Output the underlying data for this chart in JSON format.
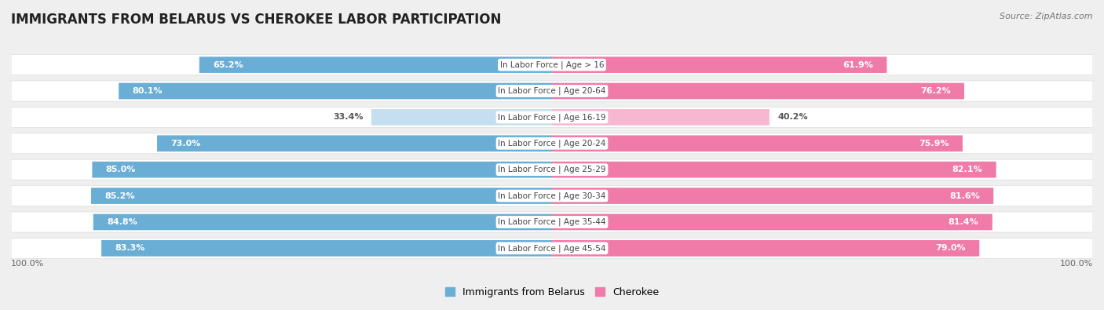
{
  "title": "IMMIGRANTS FROM BELARUS VS CHEROKEE LABOR PARTICIPATION",
  "source": "Source: ZipAtlas.com",
  "categories": [
    "In Labor Force | Age > 16",
    "In Labor Force | Age 20-64",
    "In Labor Force | Age 16-19",
    "In Labor Force | Age 20-24",
    "In Labor Force | Age 25-29",
    "In Labor Force | Age 30-34",
    "In Labor Force | Age 35-44",
    "In Labor Force | Age 45-54"
  ],
  "belarus_values": [
    65.2,
    80.1,
    33.4,
    73.0,
    85.0,
    85.2,
    84.8,
    83.3
  ],
  "cherokee_values": [
    61.9,
    76.2,
    40.2,
    75.9,
    82.1,
    81.6,
    81.4,
    79.0
  ],
  "belarus_color_strong": "#6aaed6",
  "belarus_color_light": "#c5dff0",
  "cherokee_color_strong": "#f07aa8",
  "cherokee_color_light": "#f5b8d0",
  "label_color_dark": "#555555",
  "label_color_white": "#ffffff",
  "background_color": "#efefef",
  "row_bg_color": "#ffffff",
  "row_bg_alt_color": "#f7f7f7",
  "center_box_color": "#ffffff",
  "bar_height": 0.62,
  "legend_label_belarus": "Immigrants from Belarus",
  "legend_label_cherokee": "Cherokee",
  "axis_label_left": "100.0%",
  "axis_label_right": "100.0%",
  "title_fontsize": 12,
  "label_fontsize": 8.0,
  "cat_fontsize": 7.5
}
